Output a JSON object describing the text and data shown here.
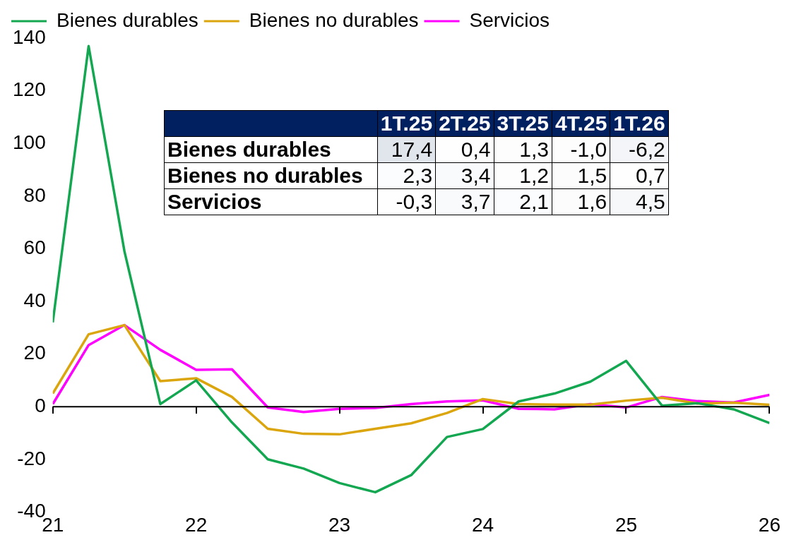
{
  "chart_data": [
    {
      "type": "line",
      "x": [
        21,
        21.25,
        21.5,
        21.75,
        22,
        22.25,
        22.5,
        22.75,
        23,
        23.25,
        23.5,
        23.75,
        24,
        24.25,
        24.5,
        24.75,
        25,
        25.25,
        25.5,
        25.75,
        26
      ],
      "series": [
        {
          "name": "Bienes durables",
          "color": "#14a751",
          "values": [
            32,
            137,
            59,
            1,
            10,
            -6,
            -20,
            -23.5,
            -29,
            -32.5,
            -26,
            -11.5,
            -8.5,
            2,
            5,
            9.5,
            17.4,
            0.4,
            1.3,
            -1.0,
            -6.2
          ]
        },
        {
          "name": "Bienes no durables",
          "color": "#dba50e",
          "values": [
            5,
            27.5,
            31,
            9.7,
            10.8,
            3.7,
            -8.4,
            -10.3,
            -10.5,
            -8.4,
            -6.3,
            -2.4,
            2.9,
            1,
            0.8,
            0.8,
            2.3,
            3.4,
            1.2,
            1.5,
            0.7
          ]
        },
        {
          "name": "Servicios",
          "color": "#ff00ff",
          "values": [
            1,
            23.4,
            31,
            21.6,
            14,
            14.2,
            -0.3,
            -2,
            -0.8,
            -0.5,
            1,
            2,
            2.4,
            -0.8,
            -1,
            1,
            -0.3,
            3.7,
            2.1,
            1.6,
            4.5
          ]
        }
      ],
      "xlim": [
        21,
        26
      ],
      "xticks": [
        21,
        22,
        23,
        24,
        25,
        26
      ],
      "ylim": [
        -40,
        140
      ],
      "yticks": [
        -40,
        -20,
        0,
        20,
        40,
        60,
        80,
        100,
        120,
        140
      ],
      "ref_lines": [
        {
          "axis": "y",
          "value": 0,
          "color": "#000000"
        }
      ],
      "grid": false,
      "legend": "top",
      "marker": "none",
      "line_style": "solid"
    },
    {
      "type": "heatmap",
      "categories": [
        "1T.25",
        "2T.25",
        "3T.25",
        "4T.25",
        "1T.26"
      ],
      "y_categories": [
        "Bienes durables",
        "Bienes no durables",
        "Servicios"
      ],
      "cells": [
        [
          17.4,
          0.4,
          1.3,
          -1.0,
          -6.2
        ],
        [
          2.3,
          3.4,
          1.2,
          1.5,
          0.7
        ],
        [
          -0.3,
          3.7,
          2.1,
          1.6,
          4.5
        ]
      ],
      "cell_labels": [
        [
          "17,4",
          "0,4",
          "1,3",
          "-1,0",
          "-6,2"
        ],
        [
          "2,3",
          "3,4",
          "1,2",
          "1,5",
          "0,7"
        ],
        [
          "-0,3",
          "3,7",
          "2,1",
          "1,6",
          "4,5"
        ]
      ]
    }
  ]
}
